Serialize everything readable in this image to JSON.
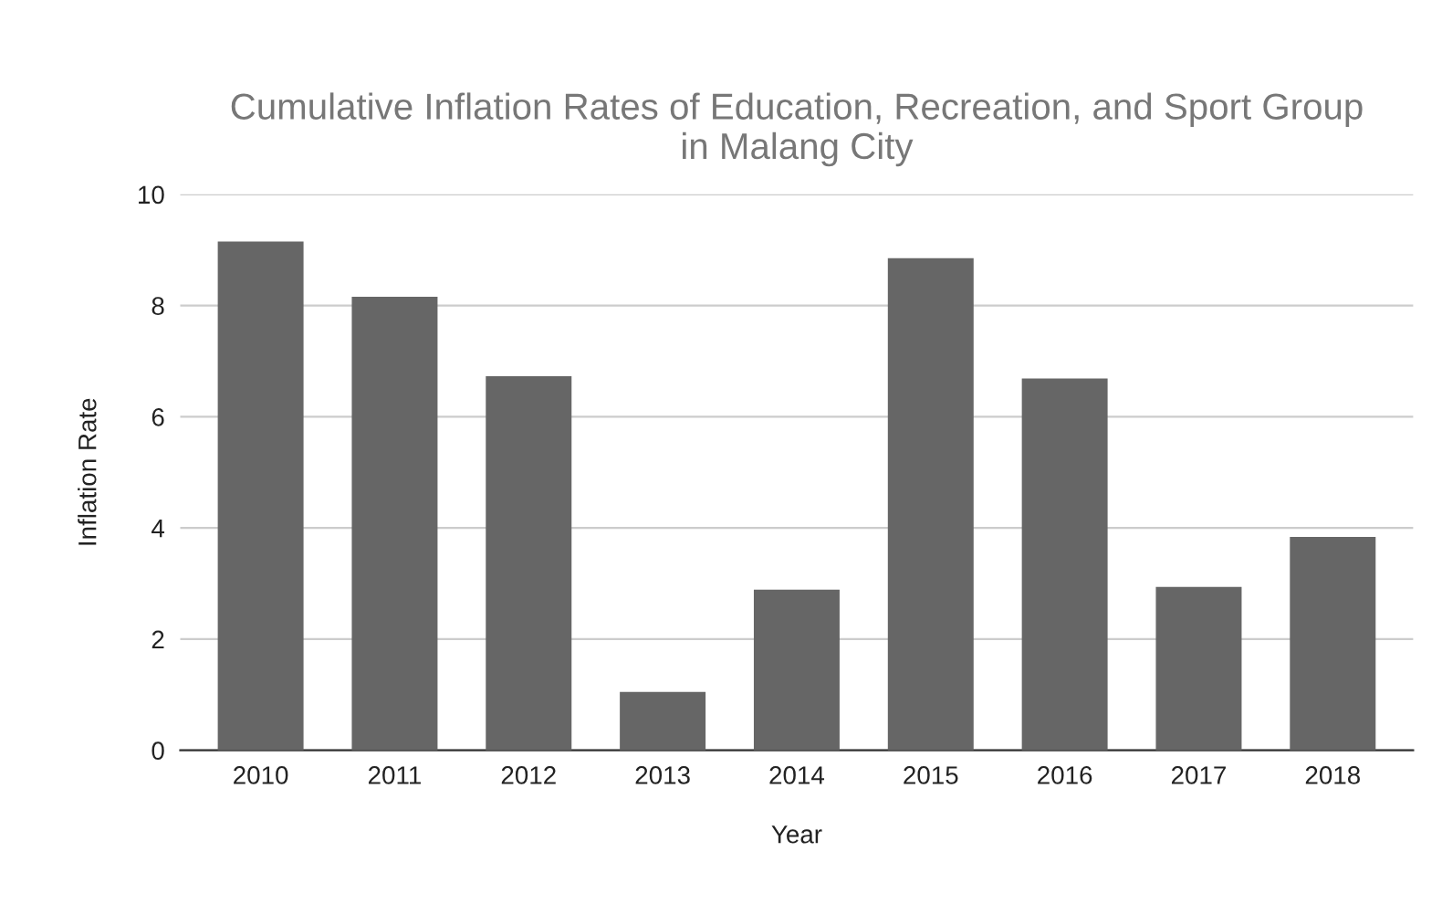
{
  "chart_data": {
    "type": "bar",
    "title": "Cumulative Inflation Rates of Education, Recreation, and Sport Group\nin Malang City",
    "xlabel": "Year",
    "ylabel": "Inflation Rate",
    "categories": [
      "2010",
      "2011",
      "2012",
      "2013",
      "2014",
      "2015",
      "2016",
      "2017",
      "2018"
    ],
    "values": [
      9.15,
      8.16,
      6.73,
      1.05,
      2.89,
      8.85,
      6.69,
      2.94,
      3.84
    ],
    "color": "#666666",
    "ylim": [
      0,
      10
    ],
    "yticks": [
      0,
      2,
      4,
      6,
      8,
      10
    ],
    "grid": "y"
  }
}
